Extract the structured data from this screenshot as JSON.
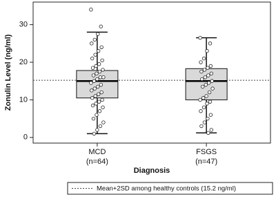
{
  "chart_data": {
    "type": "box",
    "xlabel": "Diagnosis",
    "ylabel": "Zonulin Level (ng/ml)",
    "ylim": [
      -1.5,
      36
    ],
    "yticks": [
      0,
      10,
      20,
      30
    ],
    "box_color": "#d9d9d9",
    "series": [
      {
        "name": "MCD",
        "note": "(n=64)",
        "whisker_low": 1,
        "q1": 10.5,
        "median": 15,
        "q3": 17.8,
        "whisker_high": 28,
        "points": [
          34,
          29.5,
          27.5,
          26,
          25,
          24,
          23,
          22,
          21,
          20.5,
          19.5,
          19,
          18.5,
          18,
          17.5,
          17,
          16.5,
          16,
          16,
          15.5,
          15,
          14.5,
          14,
          13.5,
          13,
          12.5,
          12,
          11.5,
          11,
          10.5,
          10,
          9.5,
          9,
          8.5,
          8,
          7,
          6,
          5,
          4,
          3,
          2,
          1
        ]
      },
      {
        "name": "FSGS",
        "note": "(n=47)",
        "whisker_low": 1.2,
        "q1": 10,
        "median": 15,
        "q3": 18.3,
        "whisker_high": 26.5,
        "points": [
          26.5,
          25,
          23,
          21,
          20,
          19,
          18.5,
          18,
          17.5,
          17,
          16.5,
          16,
          15.5,
          15,
          14.5,
          14,
          13.5,
          13,
          12,
          11,
          10.5,
          10,
          9.5,
          9,
          8,
          7,
          6,
          5,
          4,
          3,
          2,
          1.2
        ]
      }
    ],
    "reference": {
      "value": 15.2,
      "label": "Mean+2SD among healthy controls (15.2 ng/ml)"
    }
  }
}
